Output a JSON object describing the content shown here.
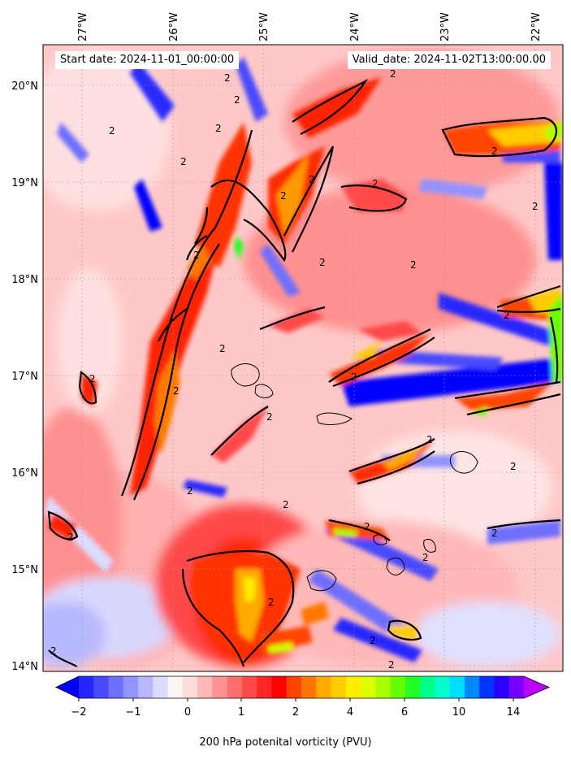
{
  "header": {
    "start_date": "Start date: 2024-11-01_00:00:00",
    "valid_date": "Valid_date: 2024-11-02T13:00:00.00"
  },
  "map": {
    "top_longitude_labels": [
      "27°W",
      "26°W",
      "25°W",
      "24°W",
      "23°W",
      "22°W"
    ],
    "left_latitude_labels": [
      "20°N",
      "19°N",
      "18°N",
      "17°N",
      "16°N",
      "15°N",
      "14°N"
    ],
    "contour_level_label": "2",
    "gridlines": true
  },
  "colorbar": {
    "tick_labels": [
      "−2",
      "−1",
      "0",
      "1",
      "2",
      "4",
      "6",
      "10",
      "14"
    ],
    "label": "200 hPa potenital vorticity (PVU)",
    "colors": [
      "#0000ff",
      "#2525ff",
      "#4a4aff",
      "#6e6eff",
      "#9393ff",
      "#b8b8ff",
      "#dcdcff",
      "#fff4f4",
      "#ffdcdc",
      "#ffb8b8",
      "#ff9393",
      "#ff6e6e",
      "#ff4a4a",
      "#ff2525",
      "#ff0000",
      "#ff4400",
      "#ff7700",
      "#ffaa00",
      "#ffcc00",
      "#ffee00",
      "#ddff00",
      "#aaff00",
      "#66ff00",
      "#22ff22",
      "#00ff88",
      "#00ffcc",
      "#00ddff",
      "#0088ff",
      "#0033ff",
      "#2a00ff",
      "#7700ff",
      "#bb00ff"
    ]
  }
}
